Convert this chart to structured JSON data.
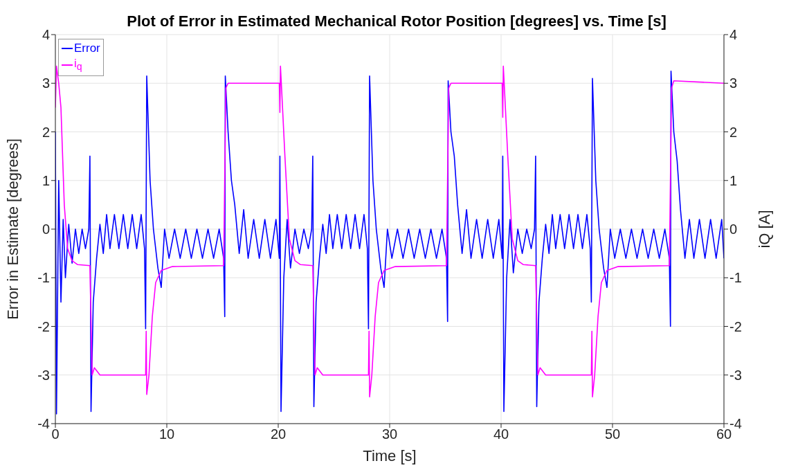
{
  "chart_data": {
    "type": "line",
    "title": "Plot of Error in Estimated Mechanical Rotor Position [degrees] vs. Time [s]",
    "xlabel": "Time [s]",
    "ylabel": "Error in Estimate [degrees]",
    "y2label": "iQ [A]",
    "xlim": [
      0,
      60
    ],
    "xticks": [
      0,
      10,
      20,
      30,
      40,
      50,
      60
    ],
    "ylim": [
      -4,
      4
    ],
    "yticks": [
      -4,
      -3,
      -2,
      -1,
      0,
      1,
      2,
      3,
      4
    ],
    "y2lim": [
      -4,
      4
    ],
    "y2ticks": [
      -4,
      -3,
      -2,
      -1,
      0,
      1,
      2,
      3,
      4
    ],
    "grid": true,
    "legend": "top left",
    "marker": "none",
    "line_style": "solid",
    "series": [
      {
        "name": "Error",
        "color": "#0000ff",
        "x": [
          0,
          0.1,
          0.3,
          0.5,
          0.7,
          0.9,
          1.2,
          1.5,
          1.8,
          2.1,
          2.4,
          2.7,
          3.0,
          3.1,
          3.2,
          3.4,
          3.7,
          4.0,
          4.3,
          4.6,
          4.9,
          5.3,
          5.7,
          6.1,
          6.5,
          6.9,
          7.3,
          7.7,
          8.0,
          8.1,
          8.2,
          8.5,
          8.8,
          9.2,
          9.5,
          9.8,
          10.2,
          10.7,
          11.2,
          11.7,
          12.2,
          12.7,
          13.2,
          13.7,
          14.2,
          14.7,
          15.1,
          15.2,
          15.25,
          15.5,
          15.8,
          16.1,
          16.5,
          16.9,
          17.3,
          17.8,
          18.3,
          18.8,
          19.3,
          19.8,
          20.1,
          20.15,
          20.25,
          20.5,
          20.8,
          21.1,
          21.5,
          21.9,
          22.3,
          22.7,
          23.0,
          23.1,
          23.2,
          23.4,
          23.7,
          24.0,
          24.3,
          24.6,
          24.9,
          25.3,
          25.7,
          26.1,
          26.5,
          26.9,
          27.3,
          27.7,
          28.0,
          28.1,
          28.2,
          28.5,
          28.8,
          29.2,
          29.5,
          29.8,
          30.2,
          30.7,
          31.2,
          31.7,
          32.2,
          32.7,
          33.2,
          33.7,
          34.2,
          34.7,
          35.1,
          35.2,
          35.25,
          35.5,
          35.8,
          36.1,
          36.5,
          36.9,
          37.3,
          37.8,
          38.3,
          38.8,
          39.3,
          39.8,
          40.1,
          40.15,
          40.25,
          40.5,
          40.8,
          41.1,
          41.5,
          41.9,
          42.3,
          42.7,
          43.0,
          43.1,
          43.2,
          43.4,
          43.7,
          44.0,
          44.3,
          44.6,
          44.9,
          45.3,
          45.7,
          46.1,
          46.5,
          46.9,
          47.3,
          47.7,
          48.0,
          48.1,
          48.2,
          48.5,
          48.8,
          49.2,
          49.5,
          49.8,
          50.2,
          50.7,
          51.2,
          51.7,
          52.2,
          52.7,
          53.2,
          53.7,
          54.2,
          54.7,
          55.1,
          55.2,
          55.25,
          55.5,
          55.8,
          56.1,
          56.5,
          56.9,
          57.3,
          57.8,
          58.3,
          58.8,
          59.3,
          59.8,
          60
        ],
        "values": [
          2.0,
          -3.8,
          1.0,
          -1.5,
          0.2,
          -1.0,
          0.1,
          -0.7,
          0,
          -0.5,
          0,
          -0.4,
          0,
          1.5,
          -3.75,
          -1.5,
          -0.6,
          0.1,
          -0.5,
          0.3,
          -0.4,
          0.3,
          -0.4,
          0.3,
          -0.4,
          0.3,
          -0.4,
          0.3,
          -0.4,
          -2.05,
          3.15,
          1.0,
          0,
          -0.8,
          -1.2,
          0,
          -0.6,
          0,
          -0.6,
          0,
          -0.6,
          0,
          -0.6,
          0,
          -0.6,
          0,
          -0.6,
          -1.8,
          3.15,
          2.0,
          1.0,
          0.5,
          -0.5,
          0.4,
          -0.6,
          0.2,
          -0.6,
          0.2,
          -0.6,
          0.2,
          -0.6,
          1.5,
          -3.75,
          -1.0,
          0.2,
          -0.8,
          0,
          -0.5,
          0,
          -0.4,
          0,
          1.5,
          -3.65,
          -1.5,
          -0.6,
          0.1,
          -0.5,
          0.3,
          -0.4,
          0.3,
          -0.4,
          0.3,
          -0.4,
          0.3,
          -0.4,
          0.3,
          -0.4,
          -2.05,
          3.15,
          1.0,
          0,
          -0.8,
          -1.2,
          0,
          -0.6,
          0,
          -0.6,
          0,
          -0.6,
          0,
          -0.6,
          0,
          -0.6,
          0,
          -0.6,
          -1.9,
          3.05,
          2.0,
          1.5,
          0.5,
          -0.5,
          0.4,
          -0.6,
          0.2,
          -0.6,
          0.2,
          -0.6,
          0.2,
          -0.6,
          1.5,
          -3.75,
          -1.0,
          0.2,
          -0.9,
          0,
          -0.5,
          0,
          -0.4,
          0,
          1.5,
          -3.65,
          -1.5,
          -0.6,
          0.1,
          -0.5,
          0.3,
          -0.4,
          0.3,
          -0.4,
          0.3,
          -0.4,
          0.3,
          -0.4,
          0.3,
          -0.4,
          -1.5,
          3.1,
          1.0,
          0,
          -0.8,
          -1.2,
          0,
          -0.6,
          0,
          -0.6,
          0,
          -0.6,
          0,
          -0.6,
          0,
          -0.6,
          0,
          -0.6,
          -2.0,
          3.25,
          2.0,
          1.4,
          0.4,
          -0.6,
          0.2,
          -0.6,
          0.2,
          -0.6,
          0.2,
          -0.6,
          0.2,
          -0.6
        ]
      },
      {
        "name": "i$_{q}$",
        "color": "#ff00ff",
        "x": [
          0,
          0.1,
          0.3,
          0.5,
          0.8,
          1.1,
          1.5,
          2.0,
          3.1,
          3.3,
          3.5,
          4.0,
          8.1,
          8.15,
          8.2,
          8.4,
          8.7,
          9.0,
          9.5,
          10.5,
          15.1,
          15.3,
          15.5,
          20.1,
          20.15,
          20.2,
          20.3,
          20.6,
          21.0,
          21.5,
          22.0,
          23.1,
          23.3,
          23.5,
          24.0,
          28.1,
          28.15,
          28.2,
          28.4,
          28.7,
          29.0,
          29.5,
          30.5,
          35.1,
          35.3,
          35.5,
          40.1,
          40.15,
          40.2,
          40.3,
          40.6,
          41.0,
          41.5,
          42.0,
          43.1,
          43.3,
          43.5,
          44.0,
          48.1,
          48.15,
          48.2,
          48.4,
          48.7,
          49.0,
          49.5,
          50.5,
          55.1,
          55.3,
          55.5,
          60
        ],
        "values": [
          2.5,
          3.35,
          3.0,
          2.5,
          0.5,
          -0.4,
          -0.65,
          -0.73,
          -0.75,
          -3.0,
          -2.85,
          -3.0,
          -3.0,
          -2.1,
          -3.4,
          -3.0,
          -1.8,
          -1.1,
          -0.85,
          -0.77,
          -0.75,
          2.9,
          3.0,
          3.0,
          2.4,
          3.35,
          2.9,
          1.5,
          -0.2,
          -0.65,
          -0.73,
          -0.75,
          -3.0,
          -2.85,
          -3.0,
          -3.0,
          -2.1,
          -3.45,
          -3.0,
          -1.8,
          -1.1,
          -0.85,
          -0.77,
          -0.75,
          2.9,
          3.0,
          3.0,
          2.3,
          3.35,
          2.9,
          1.5,
          -0.2,
          -0.65,
          -0.73,
          -0.75,
          -3.0,
          -2.85,
          -3.0,
          -3.0,
          -2.1,
          -3.45,
          -3.0,
          -1.8,
          -1.1,
          -0.85,
          -0.77,
          -0.75,
          2.9,
          3.05,
          3.0
        ]
      }
    ]
  }
}
